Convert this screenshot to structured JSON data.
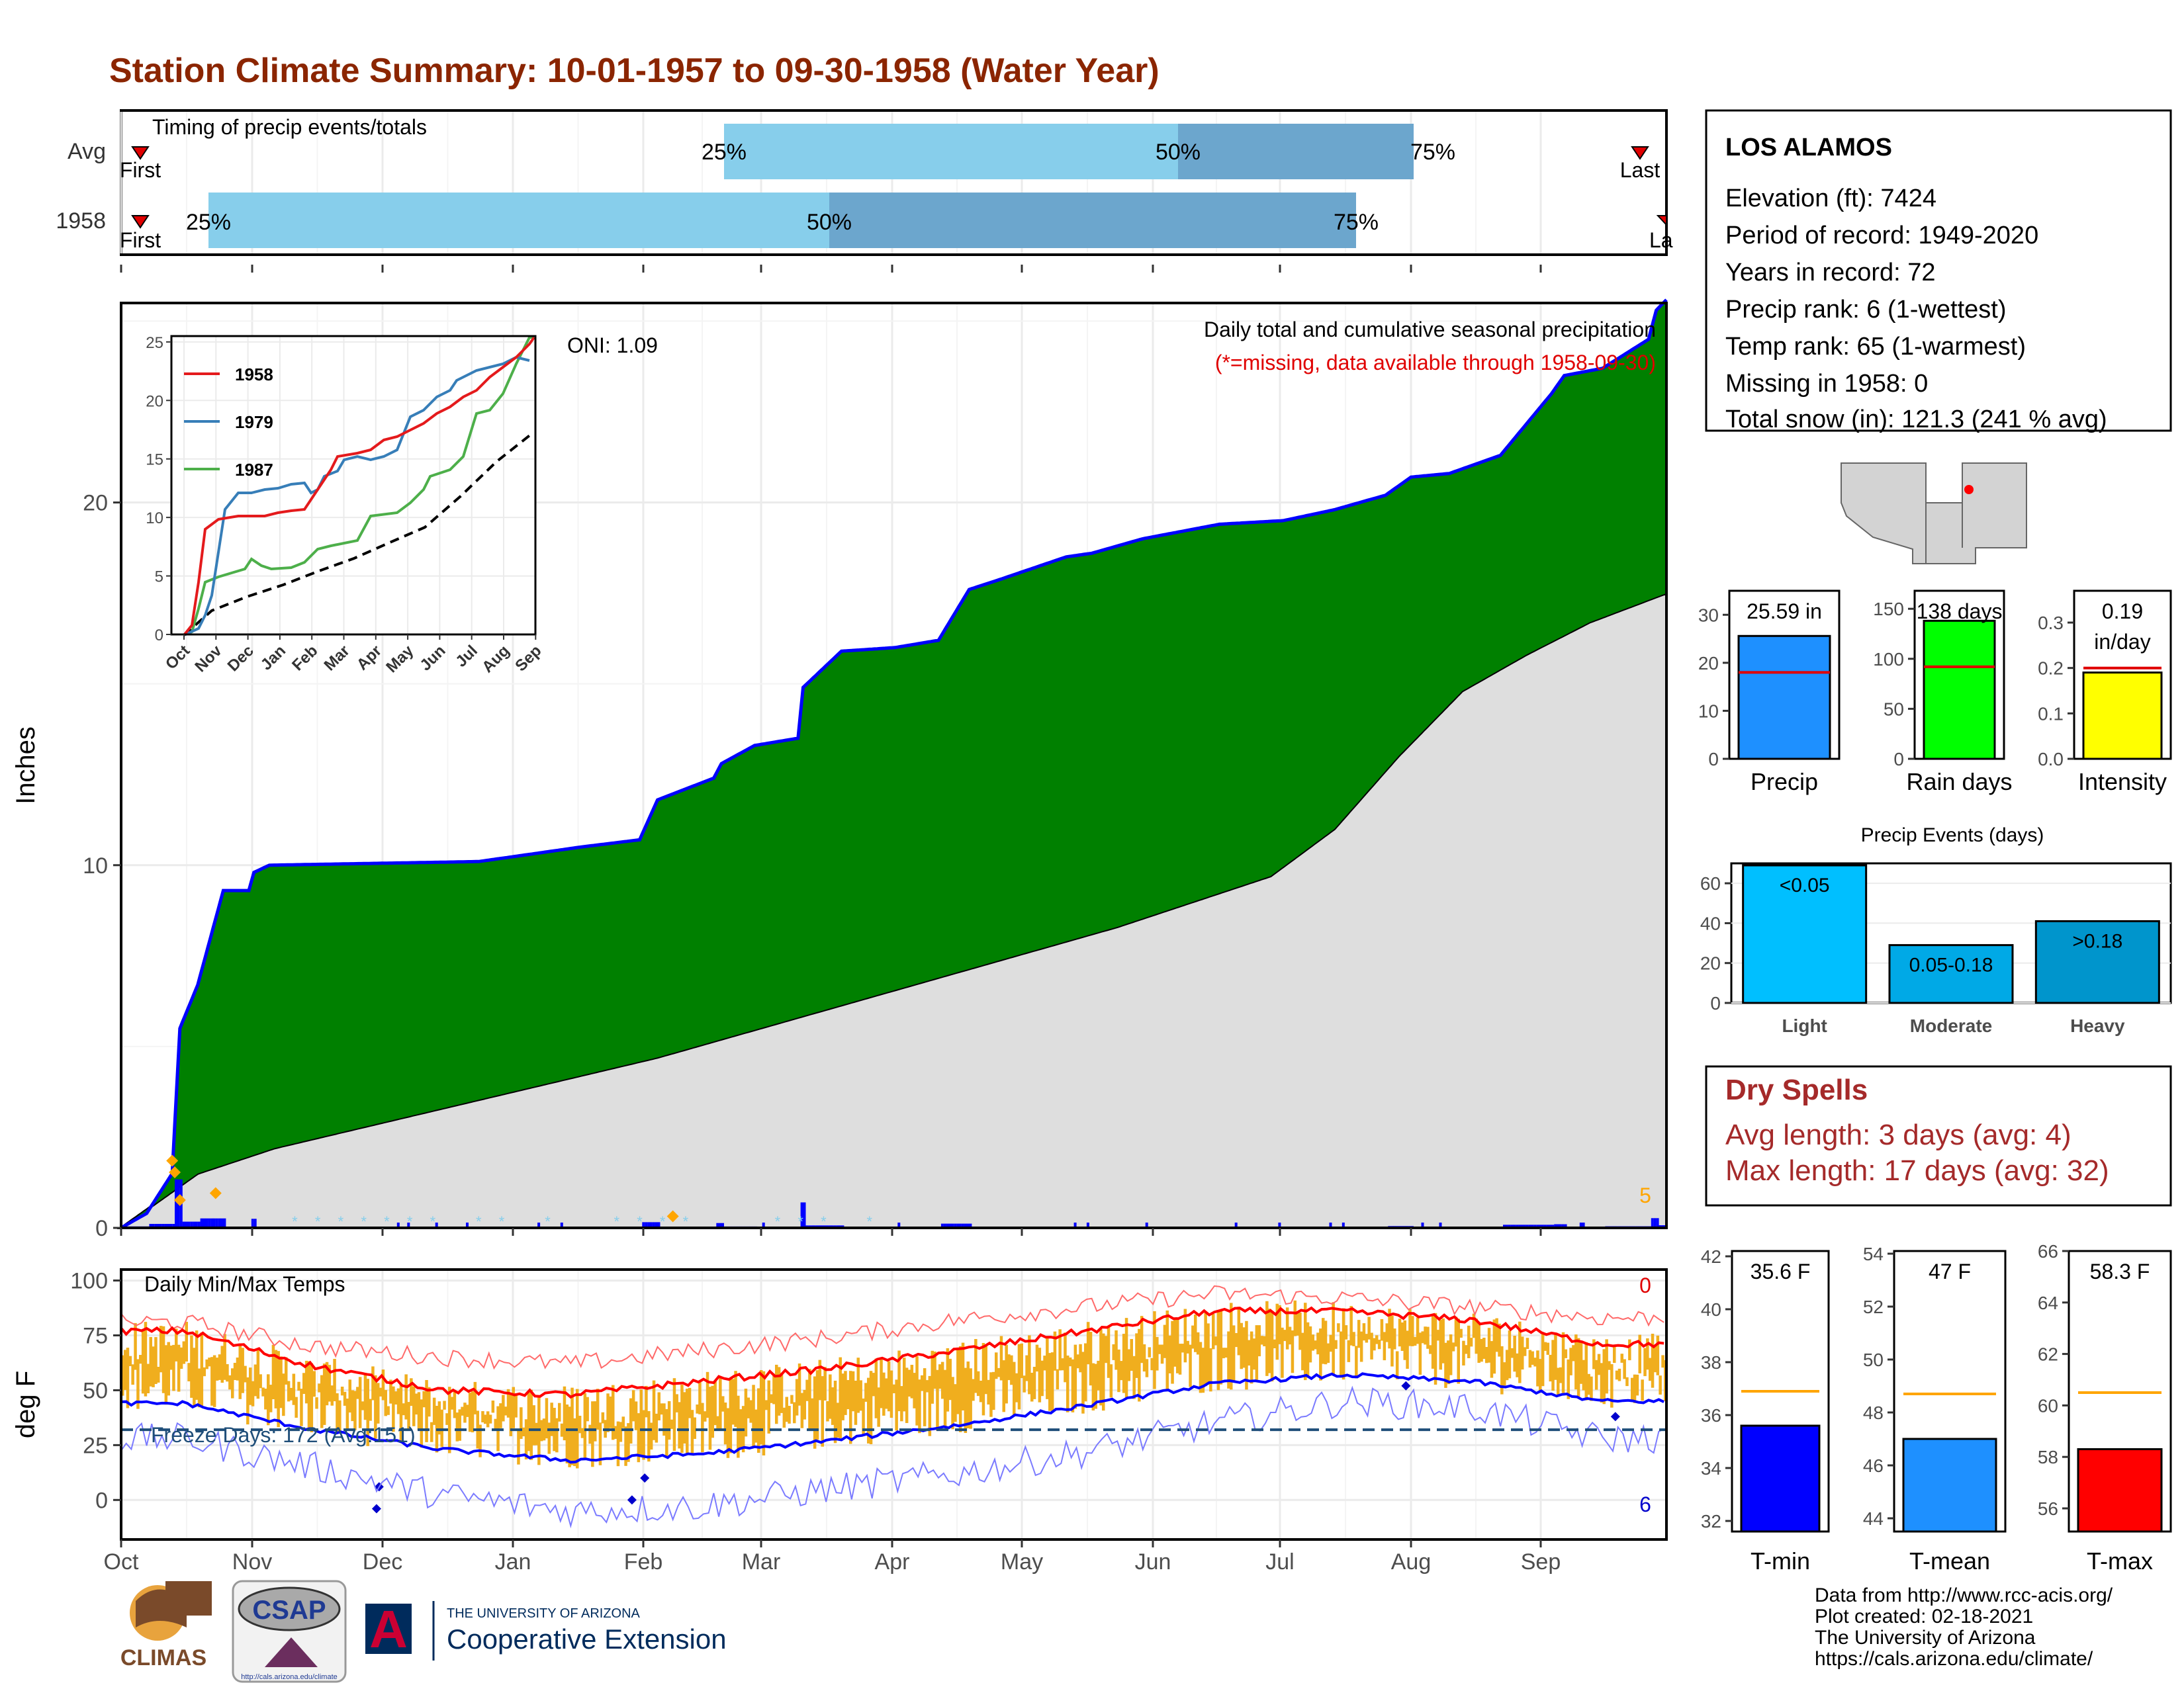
{
  "title": "Station Climate Summary: 10-01-1957 to 09-30-1958 (Water Year)",
  "colors": {
    "title": "#8B2500",
    "green": "#008000",
    "blue_line": "#0000FF",
    "gray_fill": "#DEDEDE",
    "timing_light": "#87CEEB",
    "timing_dark": "#6CA6CD",
    "bar_orange": "#F0AE1E"
  },
  "timing": {
    "label": "Timing of precip events/totals",
    "rows": [
      {
        "name": "Avg",
        "p25": "25%",
        "p50": "50%",
        "p75": "75%",
        "first": "First",
        "last": "Last"
      },
      {
        "name": "1958",
        "p25": "25%",
        "p50": "50%",
        "p75": "75%",
        "first": "First",
        "last": "La"
      }
    ]
  },
  "months": [
    "Oct",
    "Nov",
    "Dec",
    "Jan",
    "Feb",
    "Mar",
    "Apr",
    "May",
    "Jun",
    "Jul",
    "Aug",
    "Sep"
  ],
  "precip_panel": {
    "ylabel": "Inches",
    "oni": "ONI: 1.09",
    "note1": "Daily total and cumulative seasonal precipitation",
    "note2": "(*=missing, data available through 1958-09-30)",
    "corner_count": "5",
    "y_ticks": [
      "0",
      "10",
      "20"
    ],
    "inset": {
      "y_ticks": [
        "0",
        "5",
        "10",
        "15",
        "20",
        "25"
      ],
      "x_ticks": [
        "Oct",
        "Nov",
        "Dec",
        "Jan",
        "Feb",
        "Mar",
        "Apr",
        "May",
        "Jun",
        "Jul",
        "Aug",
        "Sep"
      ],
      "legend": [
        {
          "name": "1958",
          "color": "#E41A1C"
        },
        {
          "name": "1979",
          "color": "#377EB8"
        },
        {
          "name": "1987",
          "color": "#4DAF4A"
        }
      ]
    }
  },
  "chart_data": [
    {
      "type": "area",
      "title": "Daily total and cumulative seasonal precipitation",
      "ylabel": "Inches",
      "ylim": [
        0,
        25.5
      ],
      "x": [
        "Oct",
        "Nov",
        "Dec",
        "Jan",
        "Feb",
        "Mar",
        "Apr",
        "May",
        "Jun",
        "Jul",
        "Aug",
        "Sep"
      ],
      "series": [
        {
          "name": "1958",
          "knots_day_value": [
            [
              0,
              0
            ],
            [
              10,
              0.4
            ],
            [
              20,
              1.5
            ],
            [
              23,
              5.5
            ],
            [
              30,
              6.7
            ],
            [
              35,
              8
            ],
            [
              40,
              9.3
            ],
            [
              50,
              9.3
            ],
            [
              52,
              9.8
            ],
            [
              58,
              10.0
            ],
            [
              140,
              10.1
            ],
            [
              180,
              10.5
            ],
            [
              203,
              10.7
            ],
            [
              210,
              11.8
            ],
            [
              232,
              12.4
            ],
            [
              235,
              12.8
            ],
            [
              248,
              13.3
            ],
            [
              265,
              13.5
            ],
            [
              267,
              14.9
            ],
            [
              282,
              15.9
            ],
            [
              303,
              16.0
            ],
            [
              320,
              16.2
            ],
            [
              332,
              17.6
            ],
            [
              345,
              17.9
            ],
            [
              370,
              18.5
            ],
            [
              380,
              18.6
            ],
            [
              400,
              19.0
            ],
            [
              430,
              19.4
            ],
            [
              455,
              19.5
            ],
            [
              475,
              19.8
            ],
            [
              495,
              20.2
            ],
            [
              505,
              20.7
            ],
            [
              520,
              20.8
            ],
            [
              540,
              21.3
            ],
            [
              560,
              23.0
            ],
            [
              565,
              23.5
            ],
            [
              580,
              23.7
            ],
            [
              598,
              24.5
            ],
            [
              601,
              25.3
            ],
            [
              605,
              25.59
            ]
          ]
        },
        {
          "name": "Avg",
          "knots_day_value": [
            [
              0,
              0
            ],
            [
              30,
              1.5
            ],
            [
              60,
              2.2
            ],
            [
              90,
              2.7
            ],
            [
              120,
              3.2
            ],
            [
              150,
              3.7
            ],
            [
              180,
              4.2
            ],
            [
              210,
              4.7
            ],
            [
              240,
              5.3
            ],
            [
              270,
              5.9
            ],
            [
              300,
              6.5
            ],
            [
              330,
              7.1
            ],
            [
              360,
              7.7
            ],
            [
              390,
              8.3
            ],
            [
              420,
              9.0
            ],
            [
              450,
              9.7
            ],
            [
              475,
              11.0
            ],
            [
              500,
              13.0
            ],
            [
              525,
              14.8
            ],
            [
              550,
              15.8
            ],
            [
              575,
              16.7
            ],
            [
              605,
              17.5
            ]
          ]
        }
      ]
    },
    {
      "type": "line",
      "title": "Daily Min/Max Temps",
      "ylabel": "deg F",
      "ylim": [
        -18,
        105
      ],
      "y_ticks": [
        "0",
        "25",
        "50",
        "75",
        "100"
      ],
      "freeze_label": "Freeze Days: 172 (Avg:151)",
      "count_top": "0",
      "count_bottom": "6",
      "freeze_line": 32,
      "series": [
        {
          "name": "avg max",
          "knots_month_value": [
            [
              0,
              77
            ],
            [
              1,
              61
            ],
            [
              2,
              50
            ],
            [
              3,
              48
            ],
            [
              4,
              54
            ],
            [
              5,
              60
            ],
            [
              6,
              68
            ],
            [
              7,
              77
            ],
            [
              8,
              86
            ],
            [
              9,
              86
            ],
            [
              10,
              82
            ],
            [
              11,
              71
            ]
          ]
        },
        {
          "name": "avg min",
          "knots_month_value": [
            [
              0,
              44
            ],
            [
              1,
              32
            ],
            [
              2,
              23
            ],
            [
              3,
              18
            ],
            [
              4,
              21
            ],
            [
              5,
              27
            ],
            [
              6,
              34
            ],
            [
              7,
              43
            ],
            [
              8,
              53
            ],
            [
              9,
              57
            ],
            [
              10,
              54
            ],
            [
              11,
              45
            ]
          ]
        },
        {
          "name": "record max",
          "knots_month_value": [
            [
              0,
              81
            ],
            [
              1,
              70
            ],
            [
              2,
              65
            ],
            [
              3,
              62
            ],
            [
              4,
              68
            ],
            [
              5,
              74
            ],
            [
              6,
              82
            ],
            [
              7,
              88
            ],
            [
              8,
              94
            ],
            [
              9,
              92
            ],
            [
              10,
              88
            ],
            [
              11,
              83
            ]
          ]
        },
        {
          "name": "record min",
          "knots_month_value": [
            [
              0,
              28
            ],
            [
              1,
              15
            ],
            [
              2,
              2
            ],
            [
              3,
              -5
            ],
            [
              4,
              -3
            ],
            [
              5,
              5
            ],
            [
              6,
              12
            ],
            [
              7,
              22
            ],
            [
              8,
              35
            ],
            [
              9,
              45
            ],
            [
              10,
              42
            ],
            [
              11,
              28
            ]
          ]
        }
      ]
    },
    {
      "type": "bar",
      "title": "Precip",
      "categories": [
        "Precip"
      ],
      "values": [
        25.59
      ],
      "avg": 18,
      "ylim": [
        0,
        35
      ],
      "y_ticks": [
        "0",
        "10",
        "20",
        "30"
      ],
      "label": "25.59 in"
    },
    {
      "type": "bar",
      "title": "Rain days",
      "categories": [
        "Rain days"
      ],
      "values": [
        138
      ],
      "avg": 92,
      "ylim": [
        0,
        168
      ],
      "y_ticks": [
        "0",
        "50",
        "100",
        "150"
      ],
      "label": "138 days"
    },
    {
      "type": "bar",
      "title": "Intensity",
      "categories": [
        "Intensity"
      ],
      "values": [
        0.19
      ],
      "avg": 0.2,
      "ylim": [
        0,
        0.37
      ],
      "y_ticks": [
        "0.0",
        "0.1",
        "0.2",
        "0.3"
      ],
      "label1": "0.19",
      "label2": "in/day"
    },
    {
      "type": "bar",
      "title": "Precip Events (days)",
      "categories": [
        "Light",
        "Moderate",
        "Heavy"
      ],
      "values": [
        69,
        29,
        41
      ],
      "ylim": [
        0,
        70
      ],
      "y_ticks": [
        "0",
        "20",
        "40",
        "60"
      ],
      "bar_labels": [
        "<0.05",
        "0.05-0.18",
        ">0.18"
      ]
    },
    {
      "type": "bar",
      "title": "T-min",
      "categories": [
        "T-min"
      ],
      "values": [
        35.6
      ],
      "avg": 36.9,
      "ylim": [
        31.6,
        42.2
      ],
      "y_ticks": [
        "32",
        "34",
        "36",
        "38",
        "40",
        "42"
      ],
      "label": "35.6 F",
      "color": "#0000FF"
    },
    {
      "type": "bar",
      "title": "T-mean",
      "categories": [
        "T-mean"
      ],
      "values": [
        47
      ],
      "avg": 48.7,
      "ylim": [
        43.5,
        54.1
      ],
      "y_ticks": [
        "44",
        "46",
        "48",
        "50",
        "52",
        "54"
      ],
      "label": "47 F",
      "color": "#1E90FF"
    },
    {
      "type": "bar",
      "title": "T-max",
      "categories": [
        "T-max"
      ],
      "values": [
        58.3
      ],
      "avg": 60.5,
      "ylim": [
        55.1,
        66
      ],
      "y_ticks": [
        "56",
        "58",
        "60",
        "62",
        "64",
        "66"
      ],
      "label": "58.3 F",
      "color": "#FF0000"
    }
  ],
  "station": {
    "name": "LOS ALAMOS",
    "lines": [
      "Elevation (ft): 7424",
      "Period of record: 1949-2020",
      "Years in record: 72",
      "Precip rank: 6 (1-wettest)",
      "Temp rank: 65 (1-warmest)",
      "Missing in 1958: 0",
      "Total snow (in): 121.3 (241 % avg)"
    ]
  },
  "dry_spells": {
    "title": "Dry Spells",
    "avg": "Avg length: 3 days (avg: 4)",
    "max": "Max length: 17 days (avg: 32)"
  },
  "footer": {
    "lines": [
      "Data from http://www.rcc-acis.org/",
      "Plot created: 02-18-2021",
      "The University of Arizona",
      "https://cals.arizona.edu/climate/"
    ],
    "logo_climas": "CLIMAS",
    "logo_csap": "CSAP",
    "csap_url": "http://cals.arizona.edu/climate",
    "ua_top": "THE UNIVERSITY OF ARIZONA",
    "ua_bottom": "Cooperative Extension"
  }
}
